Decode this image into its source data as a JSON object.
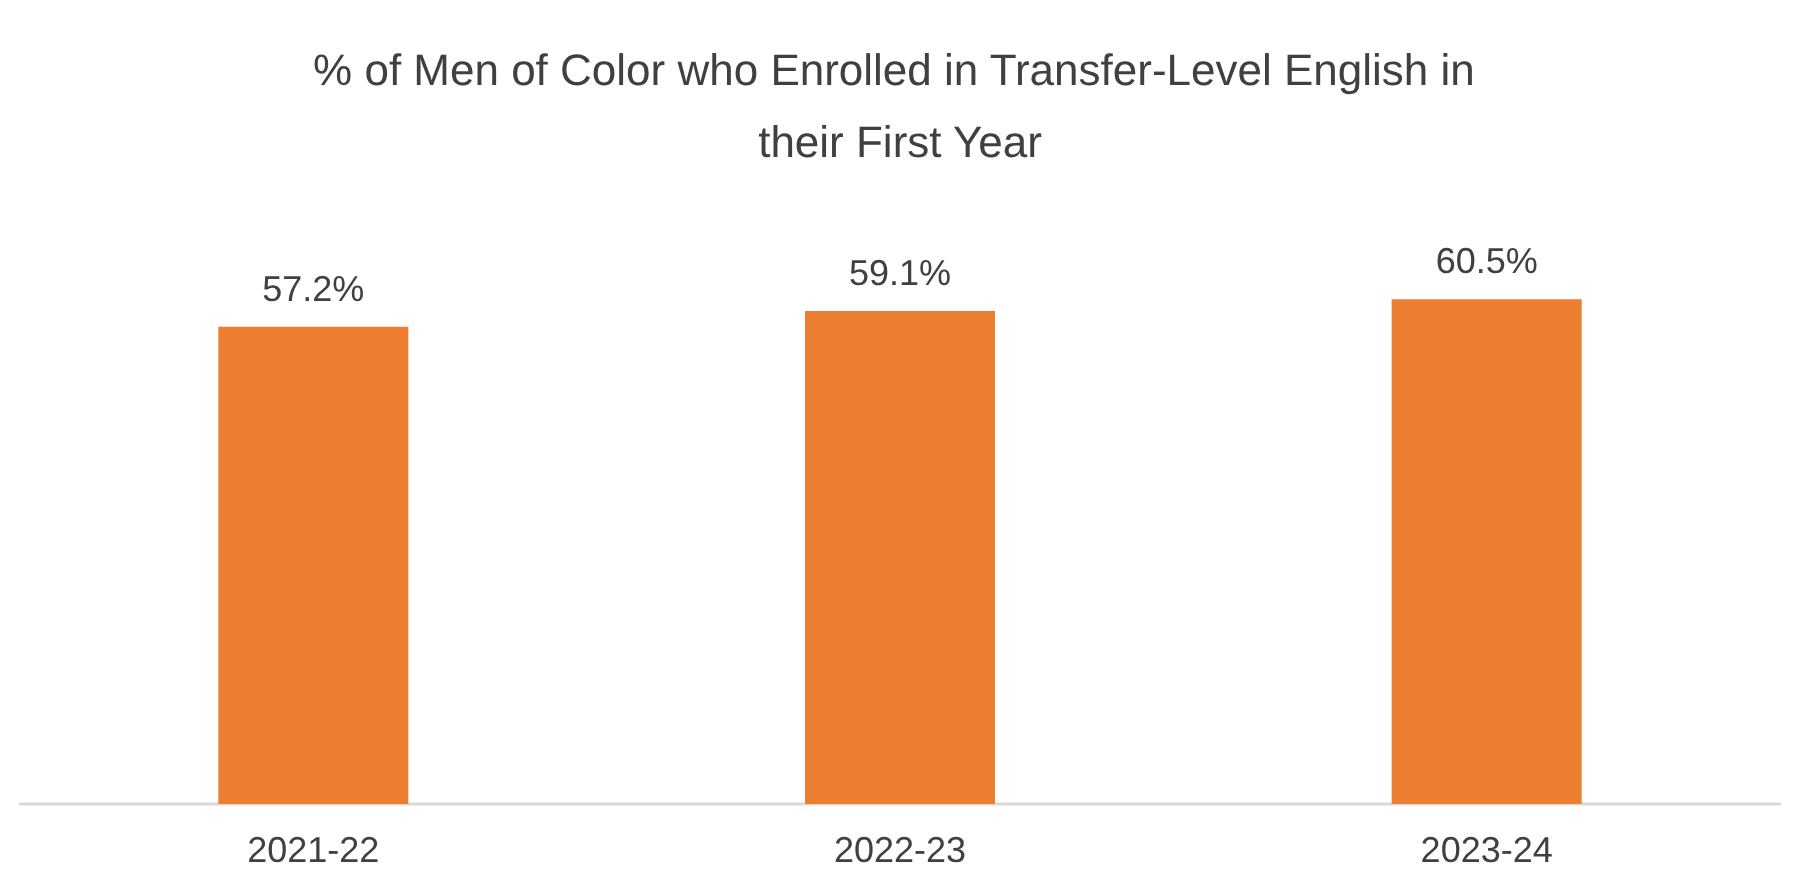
{
  "chart_data": {
    "type": "bar",
    "title": "% of Men of Color who Enrolled in Transfer-Level English in their First Year",
    "categories": [
      "2021-22",
      "2022-23",
      "2023-24"
    ],
    "values": [
      57.2,
      59.1,
      60.5
    ],
    "value_labels": [
      "57.2%",
      "59.1%",
      "60.5%"
    ],
    "color": "#ed7d31"
  }
}
